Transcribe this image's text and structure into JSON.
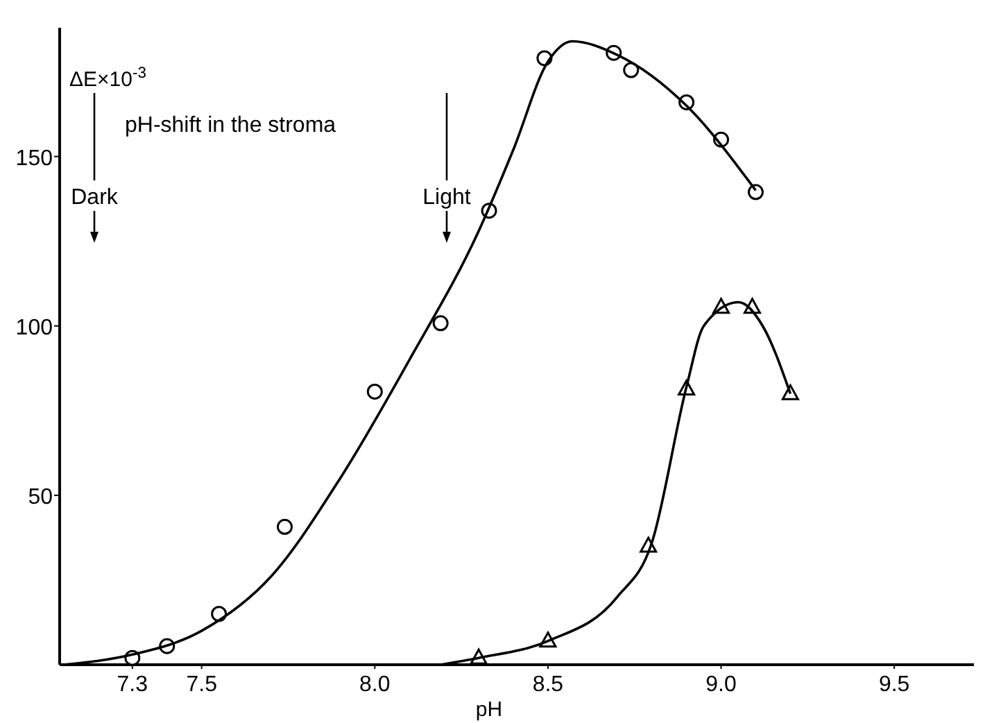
{
  "chart_data": {
    "type": "scatter",
    "xlabel": "pH",
    "ylabel": "ΔE×10$^{-3}$",
    "xlim": [
      7.09,
      9.73
    ],
    "ylim": [
      0,
      188
    ],
    "xticks": [
      7.3,
      7.5,
      {
        "value": 8,
        "label": "8.0"
      },
      8.5,
      {
        "value": 9,
        "label": "9.0"
      },
      9.5
    ],
    "yticks": [
      50,
      100,
      150
    ],
    "grid": false,
    "annotations": [
      "pH-shift in the stroma",
      "Dark",
      "Light"
    ],
    "series": [
      {
        "marker": "circle",
        "color": "#000000",
        "x": [
          7.3,
          7.4,
          7.55,
          7.74,
          8.0,
          8.19,
          8.33,
          8.49,
          8.69,
          8.74,
          8.9,
          9.0,
          9.1
        ],
        "values": [
          2,
          5.5,
          15,
          40.7,
          80.6,
          100.8,
          134,
          179,
          180.6,
          175.5,
          166,
          155,
          139.5
        ]
      },
      {
        "type": "line",
        "marker": "none",
        "line_style": "solid",
        "color": "#000000",
        "x": [
          7.1,
          7.3,
          7.5,
          7.7,
          7.9,
          8.1,
          8.3,
          8.4,
          8.5,
          8.57,
          8.7,
          8.9,
          9.1
        ],
        "values": [
          0,
          3,
          10,
          26,
          55,
          90,
          128,
          152,
          178,
          184,
          180,
          165,
          140
        ]
      },
      {
        "marker": "triangle",
        "color": "#000000",
        "x": [
          8.3,
          8.5,
          8.79,
          8.9,
          9.0,
          9.09,
          9.2
        ],
        "values": [
          2,
          7,
          35,
          81.4,
          105.5,
          105.5,
          80
        ]
      },
      {
        "type": "line",
        "marker": "none",
        "line_style": "solid",
        "color": "#000000",
        "x": [
          8.19,
          8.3,
          8.5,
          8.7,
          8.8,
          8.9,
          8.95,
          9.05,
          9.12,
          9.2
        ],
        "values": [
          0,
          2,
          7,
          20,
          36,
          82,
          100,
          107,
          100,
          80
        ]
      }
    ]
  }
}
